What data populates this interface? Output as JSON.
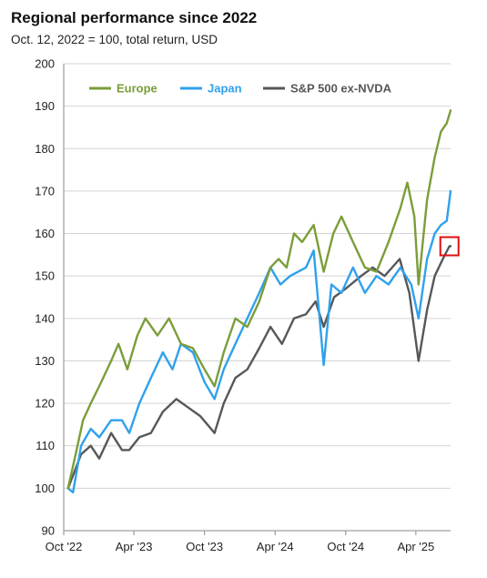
{
  "header": {
    "title": "Regional performance since 2022",
    "subtitle": "Oct. 12, 2022 = 100, total return, USD"
  },
  "chart_data": {
    "type": "line",
    "title": "Regional performance since 2022",
    "subtitle": "Oct. 12, 2022 = 100, total return, USD",
    "xlabel": "",
    "ylabel": "",
    "ylim": [
      90,
      200
    ],
    "yticks": [
      90,
      100,
      110,
      120,
      130,
      140,
      150,
      160,
      170,
      180,
      190,
      200
    ],
    "xlim": [
      "2022-10-12",
      "2025-06-30"
    ],
    "xticks": [
      "2022-10-01",
      "2023-04-01",
      "2023-10-01",
      "2024-04-01",
      "2024-10-01",
      "2025-04-01"
    ],
    "xtick_labels": [
      "Oct '22",
      "Apr '23",
      "Oct '23",
      "Apr '24",
      "Oct '24",
      "Apr '25"
    ],
    "grid": "horizontal",
    "legend_position": "top-center",
    "highlight_box": {
      "series": "S&P 500 ex-NVDA",
      "date": "2025-06-27",
      "value": 157
    },
    "series": [
      {
        "name": "Europe",
        "color": "#7b9d3a",
        "points": [
          [
            "2022-10-12",
            100
          ],
          [
            "2022-11-01",
            108
          ],
          [
            "2022-11-20",
            116
          ],
          [
            "2022-12-10",
            120
          ],
          [
            "2023-01-01",
            124
          ],
          [
            "2023-02-01",
            130
          ],
          [
            "2023-02-20",
            134
          ],
          [
            "2023-03-15",
            128
          ],
          [
            "2023-04-10",
            136
          ],
          [
            "2023-05-01",
            140
          ],
          [
            "2023-06-01",
            136
          ],
          [
            "2023-07-01",
            140
          ],
          [
            "2023-08-01",
            134
          ],
          [
            "2023-09-01",
            133
          ],
          [
            "2023-10-01",
            128
          ],
          [
            "2023-10-27",
            124
          ],
          [
            "2023-11-20",
            132
          ],
          [
            "2023-12-20",
            140
          ],
          [
            "2024-01-20",
            138
          ],
          [
            "2024-02-20",
            144
          ],
          [
            "2024-03-20",
            152
          ],
          [
            "2024-04-10",
            154
          ],
          [
            "2024-05-01",
            152
          ],
          [
            "2024-05-20",
            160
          ],
          [
            "2024-06-10",
            158
          ],
          [
            "2024-07-10",
            162
          ],
          [
            "2024-08-05",
            151
          ],
          [
            "2024-08-30",
            160
          ],
          [
            "2024-09-20",
            164
          ],
          [
            "2024-10-20",
            158
          ],
          [
            "2024-11-20",
            152
          ],
          [
            "2024-12-20",
            151
          ],
          [
            "2025-01-20",
            158
          ],
          [
            "2025-02-20",
            166
          ],
          [
            "2025-03-10",
            172
          ],
          [
            "2025-03-28",
            164
          ],
          [
            "2025-04-08",
            148
          ],
          [
            "2025-04-30",
            168
          ],
          [
            "2025-05-20",
            178
          ],
          [
            "2025-06-05",
            184
          ],
          [
            "2025-06-20",
            186
          ],
          [
            "2025-06-30",
            189
          ]
        ]
      },
      {
        "name": "Japan",
        "color": "#2fa1ec",
        "points": [
          [
            "2022-10-12",
            100
          ],
          [
            "2022-10-25",
            99
          ],
          [
            "2022-11-15",
            110
          ],
          [
            "2022-12-10",
            114
          ],
          [
            "2023-01-01",
            112
          ],
          [
            "2023-02-01",
            116
          ],
          [
            "2023-03-01",
            116
          ],
          [
            "2023-03-20",
            113
          ],
          [
            "2023-04-15",
            120
          ],
          [
            "2023-05-15",
            126
          ],
          [
            "2023-06-15",
            132
          ],
          [
            "2023-07-10",
            128
          ],
          [
            "2023-08-01",
            134
          ],
          [
            "2023-09-01",
            132
          ],
          [
            "2023-10-01",
            125
          ],
          [
            "2023-10-27",
            121
          ],
          [
            "2023-11-20",
            128
          ],
          [
            "2023-12-20",
            134
          ],
          [
            "2024-01-20",
            140
          ],
          [
            "2024-02-20",
            146
          ],
          [
            "2024-03-20",
            152
          ],
          [
            "2024-04-15",
            148
          ],
          [
            "2024-05-10",
            150
          ],
          [
            "2024-06-20",
            152
          ],
          [
            "2024-07-10",
            156
          ],
          [
            "2024-08-05",
            129
          ],
          [
            "2024-08-25",
            148
          ],
          [
            "2024-09-20",
            146
          ],
          [
            "2024-10-20",
            152
          ],
          [
            "2024-11-20",
            146
          ],
          [
            "2024-12-20",
            150
          ],
          [
            "2025-01-20",
            148
          ],
          [
            "2025-02-20",
            152
          ],
          [
            "2025-03-20",
            148
          ],
          [
            "2025-04-08",
            140
          ],
          [
            "2025-04-30",
            154
          ],
          [
            "2025-05-20",
            160
          ],
          [
            "2025-06-05",
            162
          ],
          [
            "2025-06-20",
            163
          ],
          [
            "2025-06-30",
            170
          ]
        ]
      },
      {
        "name": "S&P 500 ex-NVDA",
        "color": "#55585a",
        "points": [
          [
            "2022-10-12",
            100
          ],
          [
            "2022-10-25",
            103
          ],
          [
            "2022-11-15",
            108
          ],
          [
            "2022-12-10",
            110
          ],
          [
            "2023-01-01",
            107
          ],
          [
            "2023-02-01",
            113
          ],
          [
            "2023-03-01",
            109
          ],
          [
            "2023-03-20",
            109
          ],
          [
            "2023-04-15",
            112
          ],
          [
            "2023-05-15",
            113
          ],
          [
            "2023-06-15",
            118
          ],
          [
            "2023-07-20",
            121
          ],
          [
            "2023-08-20",
            119
          ],
          [
            "2023-09-20",
            117
          ],
          [
            "2023-10-27",
            113
          ],
          [
            "2023-11-20",
            120
          ],
          [
            "2023-12-20",
            126
          ],
          [
            "2024-01-20",
            128
          ],
          [
            "2024-02-20",
            133
          ],
          [
            "2024-03-20",
            138
          ],
          [
            "2024-04-19",
            134
          ],
          [
            "2024-05-20",
            140
          ],
          [
            "2024-06-20",
            141
          ],
          [
            "2024-07-15",
            144
          ],
          [
            "2024-08-05",
            138
          ],
          [
            "2024-09-01",
            145
          ],
          [
            "2024-10-01",
            147
          ],
          [
            "2024-11-10",
            150
          ],
          [
            "2024-12-10",
            152
          ],
          [
            "2025-01-10",
            150
          ],
          [
            "2025-02-18",
            154
          ],
          [
            "2025-03-15",
            146
          ],
          [
            "2025-04-08",
            130
          ],
          [
            "2025-04-30",
            142
          ],
          [
            "2025-05-20",
            150
          ],
          [
            "2025-06-10",
            154
          ],
          [
            "2025-06-27",
            157
          ],
          [
            "2025-06-30",
            157
          ]
        ]
      }
    ]
  }
}
